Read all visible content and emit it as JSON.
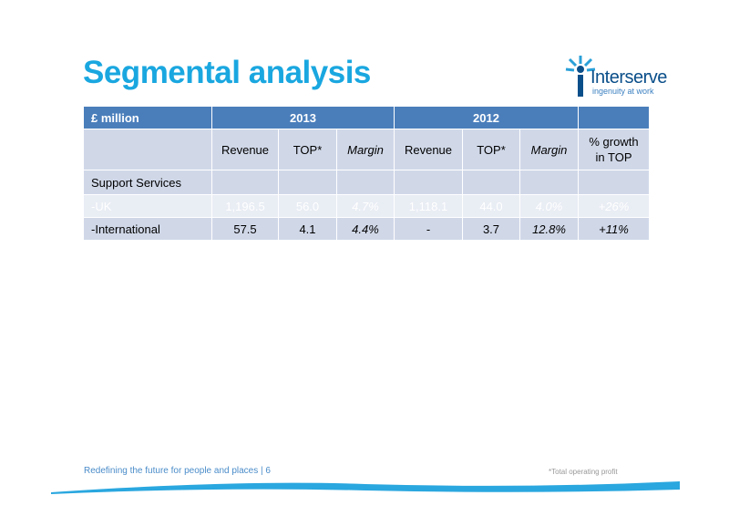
{
  "title": "Segmental analysis",
  "logo": {
    "name": "Interserve",
    "tagline": "ingenuity at work"
  },
  "table": {
    "header": {
      "unit": "£ million",
      "year1": "2013",
      "year2": "2012"
    },
    "subheader": {
      "rev1": "Revenue",
      "top1": "TOP*",
      "margin1": "Margin",
      "rev2": "Revenue",
      "top2": "TOP*",
      "margin2": "Margin",
      "growth_line1": "% growth",
      "growth_line2": "in TOP"
    },
    "rows": [
      {
        "label": "Support Services"
      },
      {
        "label": "-UK",
        "rev1": "1,196.5",
        "top1": "56.0",
        "margin1": "4.7%",
        "rev2": "1,118.1",
        "top2": "44.0",
        "margin2": "4.0%",
        "growth": "+26%"
      },
      {
        "label": "-International",
        "rev1": "57.5",
        "top1": "4.1",
        "margin1": "4.4%",
        "rev2": "-",
        "top2": "3.7",
        "margin2": "12.8%",
        "growth": "+11%"
      }
    ]
  },
  "footer": {
    "text": "Redefining the future for people and places | 6",
    "note": "*Total operating profit"
  },
  "colors": {
    "accent": "#1aa7e0",
    "header": "#4a7ebb",
    "row": "#d0d8e8",
    "navy": "#0b4f8a"
  }
}
